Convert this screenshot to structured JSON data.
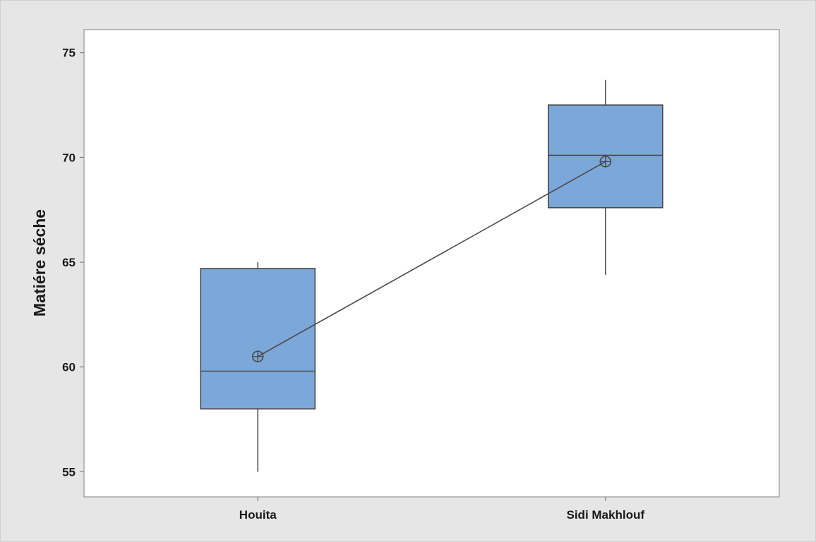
{
  "chart_data": {
    "type": "box",
    "title": "",
    "xlabel": "",
    "ylabel": "Matiére séche",
    "ylim": [
      53.8,
      76.1
    ],
    "yticks": [
      55,
      60,
      65,
      70,
      75
    ],
    "categories": [
      "Houita",
      "Sidi Makhlouf"
    ],
    "boxes": [
      {
        "category": "Houita",
        "min": 55.0,
        "q1": 58.0,
        "median": 59.8,
        "q3": 64.7,
        "max": 65.0,
        "mean": 60.5
      },
      {
        "category": "Sidi Makhlouf",
        "min": 64.4,
        "q1": 67.6,
        "median": 70.1,
        "q3": 72.5,
        "max": 73.7,
        "mean": 69.8
      }
    ],
    "mean_connect_line": true,
    "grid": false,
    "colors": {
      "box_fill": "#7BA7D9",
      "box_stroke": "#4A4A4A",
      "line": "#4A4A4A",
      "background": "#E6E6E6",
      "plot_area": "#FFFFFF",
      "frame": "#A6A6A6"
    }
  }
}
